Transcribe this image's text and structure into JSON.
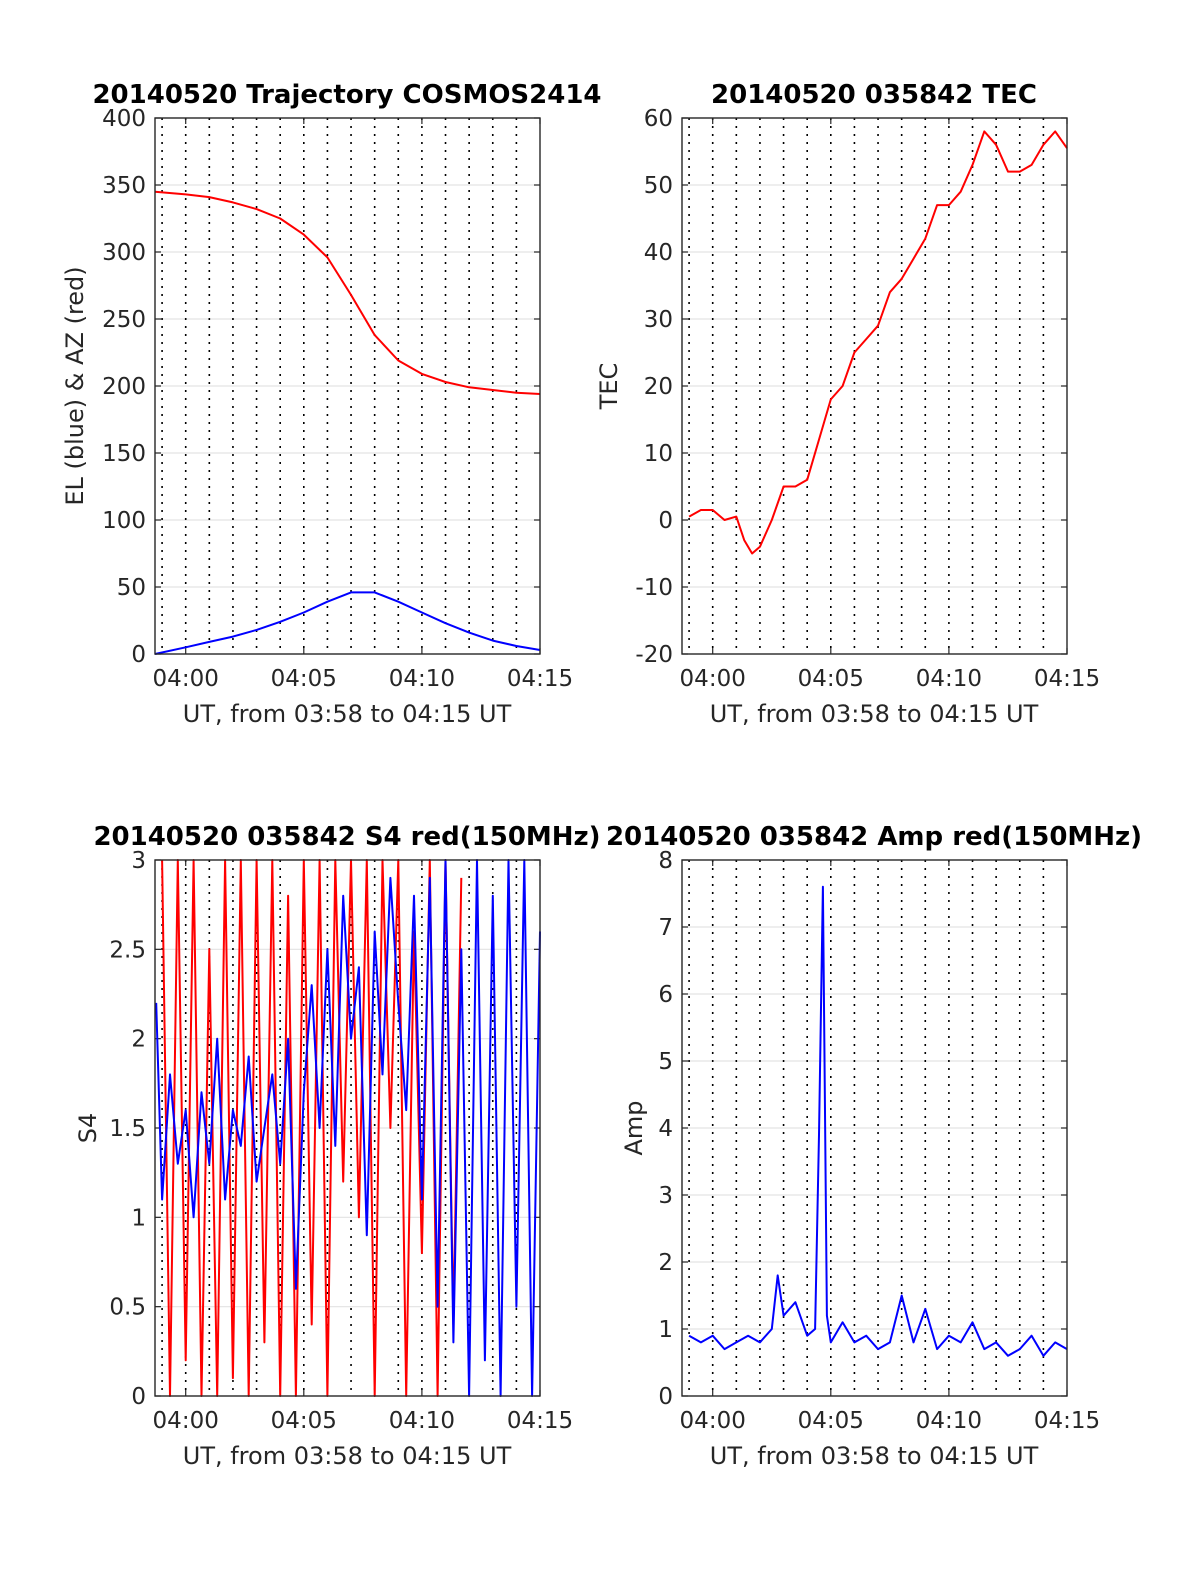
{
  "chart_data": [
    {
      "id": "trajectory",
      "type": "line",
      "title": "20140520 Trajectory COSMOS2414",
      "xlabel": "UT, from 03:58 to 04:15 UT",
      "ylabel": "EL (blue) & AZ (red)",
      "xlim": [
        "03:58:42",
        "04:15:00"
      ],
      "ylim": [
        0,
        400
      ],
      "yticks": [
        0,
        50,
        100,
        150,
        200,
        250,
        300,
        350,
        400
      ],
      "xticks": [
        "04:00",
        "04:05",
        "04:10",
        "04:15"
      ],
      "grid": true,
      "series": [
        {
          "color": "#ff0000",
          "x": [
            "03:58:42",
            "04:00:00",
            "04:01:00",
            "04:02:00",
            "04:03:00",
            "04:04:00",
            "04:05:00",
            "04:06:00",
            "04:07:00",
            "04:08:00",
            "04:09:00",
            "04:10:00",
            "04:11:00",
            "04:12:00",
            "04:13:00",
            "04:14:00",
            "04:15:00"
          ],
          "y": [
            345,
            343,
            341,
            337,
            332,
            325,
            313,
            296,
            268,
            238,
            219,
            209,
            203,
            199,
            197,
            195,
            194
          ]
        },
        {
          "color": "#0000ff",
          "x": [
            "03:58:42",
            "04:00:00",
            "04:01:00",
            "04:02:00",
            "04:03:00",
            "04:04:00",
            "04:05:00",
            "04:06:00",
            "04:07:00",
            "04:08:00",
            "04:09:00",
            "04:10:00",
            "04:11:00",
            "04:12:00",
            "04:13:00",
            "04:14:00",
            "04:15:00"
          ],
          "y": [
            0,
            5,
            9,
            13,
            18,
            24,
            31,
            39,
            46,
            46,
            39,
            31,
            23,
            16,
            10,
            6,
            3
          ]
        }
      ]
    },
    {
      "id": "tec",
      "type": "line",
      "title": "20140520 035842 TEC",
      "xlabel": "UT, from 03:58 to 04:15 UT",
      "ylabel": "TEC",
      "xlim": [
        "03:58:42",
        "04:15:00"
      ],
      "ylim": [
        -20,
        60
      ],
      "yticks": [
        -20,
        -10,
        0,
        10,
        20,
        30,
        40,
        50,
        60
      ],
      "xticks": [
        "04:00",
        "04:05",
        "04:10",
        "04:15"
      ],
      "grid": true,
      "series": [
        {
          "color": "#ff0000",
          "x": [
            "03:59:00",
            "03:59:30",
            "04:00:00",
            "04:00:30",
            "04:01:00",
            "04:01:20",
            "04:01:40",
            "04:02:00",
            "04:02:30",
            "04:03:00",
            "04:03:30",
            "04:04:00",
            "04:04:30",
            "04:05:00",
            "04:05:30",
            "04:06:00",
            "04:06:30",
            "04:07:00",
            "04:07:30",
            "04:08:00",
            "04:08:30",
            "04:09:00",
            "04:09:30",
            "04:10:00",
            "04:10:30",
            "04:11:00",
            "04:11:30",
            "04:12:00",
            "04:12:30",
            "04:13:00",
            "04:13:30",
            "04:14:00",
            "04:14:30",
            "04:15:00"
          ],
          "y": [
            0.5,
            1.5,
            1.5,
            0,
            0.5,
            -3,
            -5,
            -4,
            0,
            5,
            5,
            6,
            12,
            18,
            20,
            25,
            27,
            29,
            34,
            36,
            39,
            42,
            47,
            47,
            49,
            53,
            58,
            56,
            52,
            52,
            53,
            56,
            58,
            55.5
          ]
        }
      ]
    },
    {
      "id": "s4",
      "type": "line",
      "title": "20140520 035842 S4 red(150MHz)",
      "xlabel": "UT, from 03:58 to 04:15 UT",
      "ylabel": "S4",
      "xlim": [
        "03:58:42",
        "04:15:00"
      ],
      "ylim": [
        0,
        3
      ],
      "yticks": [
        0,
        0.5,
        1,
        1.5,
        2,
        2.5,
        3
      ],
      "xticks": [
        "04:00",
        "04:05",
        "04:10",
        "04:15"
      ],
      "grid": true,
      "series": [
        {
          "color": "#ff0000",
          "x": [
            "03:59:00",
            "03:59:20",
            "03:59:40",
            "04:00:00",
            "04:00:20",
            "04:00:40",
            "04:01:00",
            "04:01:20",
            "04:01:40",
            "04:02:00",
            "04:02:20",
            "04:02:40",
            "04:03:00",
            "04:03:20",
            "04:03:40",
            "04:04:00",
            "04:04:20",
            "04:04:40",
            "04:05:00",
            "04:05:20",
            "04:05:40",
            "04:06:00",
            "04:06:20",
            "04:06:40",
            "04:07:00",
            "04:07:20",
            "04:07:40",
            "04:08:00",
            "04:08:20",
            "04:08:40",
            "04:09:00",
            "04:09:20",
            "04:09:40",
            "04:10:00",
            "04:10:20",
            "04:10:40",
            "04:11:00",
            "04:11:20",
            "04:11:40"
          ],
          "y": [
            3,
            0,
            3,
            0.2,
            3,
            0,
            2.5,
            0,
            3,
            0.1,
            3,
            0,
            3,
            0.3,
            3,
            0,
            2.8,
            0,
            3,
            0.4,
            3,
            0,
            3,
            1.2,
            3,
            1.0,
            3,
            0,
            3,
            1.5,
            3,
            0,
            2.6,
            0.8,
            3,
            0,
            3,
            0.4,
            2.9
          ]
        },
        {
          "color": "#0000ff",
          "x": [
            "03:58:45",
            "03:59:00",
            "03:59:20",
            "03:59:40",
            "04:00:00",
            "04:00:20",
            "04:00:40",
            "04:01:00",
            "04:01:20",
            "04:01:40",
            "04:02:00",
            "04:02:20",
            "04:02:40",
            "04:03:00",
            "04:03:20",
            "04:03:40",
            "04:04:00",
            "04:04:20",
            "04:04:40",
            "04:05:00",
            "04:05:20",
            "04:05:40",
            "04:06:00",
            "04:06:20",
            "04:06:40",
            "04:07:00",
            "04:07:20",
            "04:07:40",
            "04:08:00",
            "04:08:20",
            "04:08:40",
            "04:09:00",
            "04:09:20",
            "04:09:40",
            "04:10:00",
            "04:10:20",
            "04:10:40",
            "04:11:00",
            "04:11:20",
            "04:11:40",
            "04:12:00",
            "04:12:20",
            "04:12:40",
            "04:13:00",
            "04:13:20",
            "04:13:40",
            "04:14:00",
            "04:14:20",
            "04:14:40",
            "04:15:00"
          ],
          "y": [
            2.2,
            1.1,
            1.8,
            1.3,
            1.6,
            1.0,
            1.7,
            1.3,
            2.0,
            1.1,
            1.6,
            1.4,
            1.9,
            1.2,
            1.5,
            1.8,
            1.3,
            2.0,
            0.6,
            1.7,
            2.3,
            1.5,
            2.5,
            1.4,
            2.8,
            2.0,
            2.4,
            0.9,
            2.6,
            1.8,
            2.9,
            2.2,
            1.6,
            2.8,
            1.1,
            2.9,
            0.5,
            3,
            0.3,
            2.5,
            0,
            3,
            0.2,
            2.8,
            0,
            3,
            0.5,
            3,
            0,
            2.6
          ]
        }
      ]
    },
    {
      "id": "amp",
      "type": "line",
      "title": "20140520 035842 Amp red(150MHz)",
      "xlabel": "UT, from 03:58 to 04:15 UT",
      "ylabel": "Amp",
      "xlim": [
        "03:58:42",
        "04:15:00"
      ],
      "ylim": [
        0,
        8
      ],
      "yticks": [
        0,
        1,
        2,
        3,
        4,
        5,
        6,
        7,
        8
      ],
      "xticks": [
        "04:00",
        "04:05",
        "04:10",
        "04:15"
      ],
      "grid": true,
      "series": [
        {
          "color": "#0000ff",
          "x": [
            "03:59:00",
            "03:59:30",
            "04:00:00",
            "04:00:30",
            "04:01:00",
            "04:01:30",
            "04:02:00",
            "04:02:30",
            "04:02:45",
            "04:03:00",
            "04:03:30",
            "04:04:00",
            "04:04:20",
            "04:04:30",
            "04:04:40",
            "04:04:50",
            "04:05:00",
            "04:05:30",
            "04:06:00",
            "04:06:30",
            "04:07:00",
            "04:07:30",
            "04:08:00",
            "04:08:30",
            "04:09:00",
            "04:09:30",
            "04:10:00",
            "04:10:30",
            "04:11:00",
            "04:11:30",
            "04:12:00",
            "04:12:30",
            "04:13:00",
            "04:13:30",
            "04:14:00",
            "04:14:30",
            "04:15:00"
          ],
          "y": [
            0.9,
            0.8,
            0.9,
            0.7,
            0.8,
            0.9,
            0.8,
            1.0,
            1.8,
            1.2,
            1.4,
            0.9,
            1.0,
            3.9,
            7.6,
            1.2,
            0.8,
            1.1,
            0.8,
            0.9,
            0.7,
            0.8,
            1.5,
            0.8,
            1.3,
            0.7,
            0.9,
            0.8,
            1.1,
            0.7,
            0.8,
            0.6,
            0.7,
            0.9,
            0.6,
            0.8,
            0.7
          ]
        }
      ]
    }
  ]
}
